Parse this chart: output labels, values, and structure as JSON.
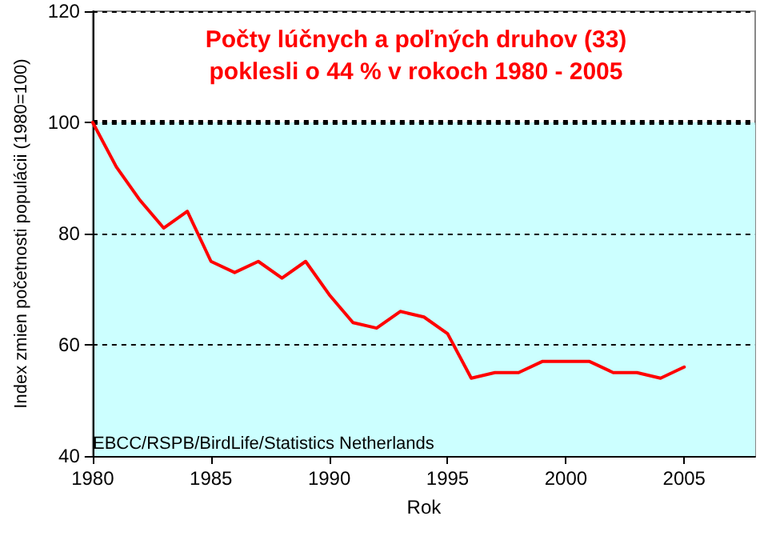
{
  "chart_data": {
    "type": "line",
    "title": "Počty lúčnych a poľných druhov (33)\npoklesli o 44 % v rokoch 1980 - 2005",
    "xlabel": "Rok",
    "ylabel": "Index zmien početnosti populácii (1980=100)",
    "x": [
      1980,
      1981,
      1982,
      1983,
      1984,
      1985,
      1986,
      1987,
      1988,
      1989,
      1990,
      1991,
      1992,
      1993,
      1994,
      1995,
      1996,
      1997,
      1998,
      1999,
      2000,
      2001,
      2002,
      2003,
      2004,
      2005
    ],
    "series": [
      {
        "color": "#ff0000",
        "values": [
          100,
          92,
          86,
          81,
          84,
          75,
          73,
          75,
          72,
          75,
          69,
          64,
          63,
          66,
          65,
          62,
          54,
          55,
          55,
          57,
          57,
          57,
          55,
          55,
          54,
          56
        ]
      }
    ],
    "xlim": [
      1980,
      2008
    ],
    "xticks": [
      1980,
      1985,
      1990,
      1995,
      2000,
      2005
    ],
    "ylim": [
      40,
      120
    ],
    "yticks": [
      40,
      60,
      80,
      100,
      120
    ],
    "grid": "y",
    "marker": "none",
    "line_style": "solid",
    "ref_lines": [
      {
        "axis": "y",
        "value": 100,
        "color": "#000000",
        "line_style": "dotted"
      }
    ],
    "bands": [
      {
        "axis": "y",
        "from": 40,
        "to": 100,
        "color": "#ccffff"
      }
    ],
    "annotations": [
      "EBCC/RSPB/BirdLife/Statistics Netherlands"
    ]
  }
}
